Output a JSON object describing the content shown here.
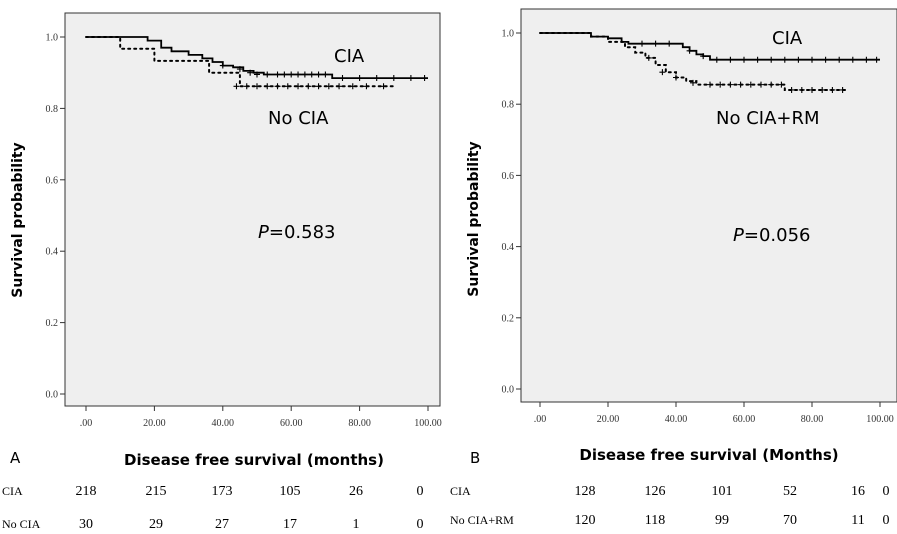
{
  "chart_data": [
    {
      "type": "line",
      "panel_label": "A",
      "xlabel": "Disease free survival (months)",
      "ylabel": "Survival probability",
      "x_ticks": [
        ".00",
        "20.00",
        "40.00",
        "60.00",
        "80.00",
        "100.00"
      ],
      "y_ticks": [
        "0.0",
        "0.2",
        "0.4",
        "0.6",
        "0.8",
        "1.0"
      ],
      "xlim": [
        0,
        100
      ],
      "ylim": [
        0,
        1.0
      ],
      "annotation": "P=0.583",
      "p_value": "0.583",
      "series": [
        {
          "name": "CIA",
          "style": "solid",
          "x": [
            0,
            10,
            18,
            22,
            25,
            30,
            34,
            37,
            40,
            43,
            46,
            49,
            52,
            72,
            100
          ],
          "y": [
            1.0,
            1.0,
            0.99,
            0.97,
            0.96,
            0.95,
            0.94,
            0.93,
            0.92,
            0.915,
            0.905,
            0.9,
            0.895,
            0.885,
            0.885
          ],
          "censor_x": [
            40,
            45,
            48,
            50,
            53,
            56,
            58,
            60,
            62,
            64,
            66,
            68,
            70,
            75,
            80,
            85,
            90,
            95,
            99
          ],
          "censor_y": [
            0.92,
            0.91,
            0.9,
            0.895,
            0.895,
            0.895,
            0.895,
            0.895,
            0.895,
            0.895,
            0.895,
            0.895,
            0.895,
            0.885,
            0.885,
            0.885,
            0.885,
            0.885,
            0.885
          ]
        },
        {
          "name": "No CIA",
          "style": "dotted",
          "x": [
            0,
            10,
            20,
            36,
            42,
            45,
            90
          ],
          "y": [
            1.0,
            0.967,
            0.933,
            0.9,
            0.9,
            0.862,
            0.862
          ],
          "censor_x": [
            44,
            47,
            50,
            53,
            56,
            59,
            62,
            65,
            68,
            71,
            74,
            78,
            82,
            87
          ],
          "censor_y": [
            0.862,
            0.862,
            0.862,
            0.862,
            0.862,
            0.862,
            0.862,
            0.862,
            0.862,
            0.862,
            0.862,
            0.862,
            0.862,
            0.862
          ]
        }
      ],
      "risk_table": {
        "rows": [
          {
            "name": "CIA",
            "values": [
              "218",
              "215",
              "173",
              "105",
              "26",
              "0"
            ]
          },
          {
            "name": "No CIA",
            "values": [
              "30",
              "29",
              "27",
              "17",
              "1",
              "0"
            ]
          }
        ]
      }
    },
    {
      "type": "line",
      "panel_label": "B",
      "xlabel": "Disease free survival (Months)",
      "ylabel": "Survival probability",
      "x_ticks": [
        ".00",
        "20.00",
        "40.00",
        "60.00",
        "80.00",
        "100.00"
      ],
      "y_ticks": [
        "0.0",
        "0.2",
        "0.4",
        "0.6",
        "0.8",
        "1.0"
      ],
      "xlim": [
        0,
        100
      ],
      "ylim": [
        0,
        1.0
      ],
      "annotation": "P=0.056",
      "p_value": "0.056",
      "series": [
        {
          "name": "CIA",
          "style": "solid",
          "x": [
            0,
            15,
            20,
            24,
            26,
            40,
            42,
            44,
            46,
            48,
            50,
            100
          ],
          "y": [
            1.0,
            0.99,
            0.985,
            0.975,
            0.97,
            0.97,
            0.96,
            0.95,
            0.94,
            0.935,
            0.925,
            0.925
          ],
          "censor_x": [
            30,
            34,
            38,
            44,
            48,
            52,
            56,
            60,
            64,
            68,
            72,
            76,
            80,
            84,
            88,
            92,
            96,
            99
          ],
          "censor_y": [
            0.97,
            0.97,
            0.97,
            0.95,
            0.935,
            0.925,
            0.925,
            0.925,
            0.925,
            0.925,
            0.925,
            0.925,
            0.925,
            0.925,
            0.925,
            0.925,
            0.925,
            0.925
          ]
        },
        {
          "name": "No CIA+RM",
          "style": "dotted",
          "x": [
            0,
            15,
            20,
            25,
            28,
            31,
            34,
            37,
            40,
            43,
            46,
            72,
            90
          ],
          "y": [
            1.0,
            0.99,
            0.975,
            0.96,
            0.945,
            0.93,
            0.91,
            0.89,
            0.875,
            0.865,
            0.855,
            0.84,
            0.84
          ],
          "censor_x": [
            32,
            36,
            40,
            45,
            50,
            53,
            56,
            59,
            62,
            65,
            68,
            71,
            74,
            77,
            80,
            83,
            86,
            89
          ],
          "censor_y": [
            0.93,
            0.89,
            0.875,
            0.86,
            0.855,
            0.855,
            0.855,
            0.855,
            0.855,
            0.855,
            0.855,
            0.855,
            0.84,
            0.84,
            0.84,
            0.84,
            0.84,
            0.84
          ]
        }
      ],
      "risk_table": {
        "rows": [
          {
            "name": "CIA",
            "values": [
              "128",
              "126",
              "101",
              "52",
              "16",
              "0"
            ]
          },
          {
            "name": "No CIA+RM",
            "values": [
              "120",
              "118",
              "99",
              "70",
              "11",
              "0"
            ]
          }
        ]
      }
    }
  ]
}
